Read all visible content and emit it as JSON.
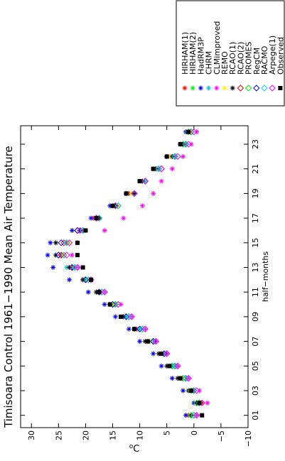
{
  "chart_data": {
    "type": "scatter",
    "title": "Timisoara Control 1961−1990 Mean Air Temperature",
    "xlabel": "half−months",
    "ylabel": "oC",
    "xlim": [
      0,
      24.5
    ],
    "ylim": [
      -10,
      32
    ],
    "xticks": [
      "01",
      "03",
      "05",
      "07",
      "09",
      "11",
      "13",
      "15",
      "17",
      "19",
      "21",
      "23"
    ],
    "yticks": [
      "−10",
      "−5",
      "0",
      "5",
      "10",
      "15",
      "20",
      "25",
      "30"
    ],
    "grid": false,
    "legend_position": "top-right",
    "x": [
      1,
      2,
      3,
      4,
      5,
      6,
      7,
      8,
      9,
      10,
      11,
      12,
      13,
      14,
      15,
      16,
      17,
      18,
      19,
      20,
      21,
      22,
      23,
      24
    ],
    "series": [
      {
        "name": "HIRHAM(1)",
        "marker": "star",
        "color": "#ff0000",
        "values": [
          1.0,
          -1.5,
          0.5,
          2.5,
          4.5,
          6.0,
          8.5,
          10.5,
          13.0,
          15.0,
          18.0,
          20.5,
          22.5,
          24.5,
          23.5,
          21.0,
          18.5,
          15.0,
          12.0,
          10.0,
          7.0,
          4.0,
          2.0,
          1.0
        ]
      },
      {
        "name": "HIRHAM(2)",
        "marker": "star",
        "color": "#00ee00",
        "values": [
          0.5,
          -1.0,
          0.0,
          2.0,
          4.0,
          5.5,
          8.0,
          10.0,
          12.5,
          14.5,
          17.5,
          20.0,
          22.0,
          24.0,
          23.0,
          20.5,
          18.0,
          14.5,
          11.5,
          9.5,
          6.5,
          3.5,
          1.5,
          0.5
        ]
      },
      {
        "name": "HadRM3P",
        "marker": "star",
        "color": "#0000ff",
        "values": [
          1.5,
          0.0,
          2.0,
          4.0,
          6.0,
          7.5,
          10.0,
          12.0,
          14.5,
          16.5,
          19.5,
          23.0,
          26.0,
          27.0,
          26.5,
          22.5,
          19.0,
          15.5,
          12.5,
          10.0,
          7.5,
          5.0,
          2.5,
          1.5
        ]
      },
      {
        "name": "CHRM",
        "marker": "star",
        "color": "#00cccc",
        "values": [
          0.5,
          -1.0,
          0.0,
          1.5,
          3.5,
          5.5,
          7.5,
          10.0,
          12.5,
          14.5,
          18.0,
          20.5,
          23.5,
          24.0,
          23.5,
          20.5,
          17.5,
          14.0,
          11.0,
          9.0,
          6.5,
          3.5,
          1.5,
          0.5
        ]
      },
      {
        "name": "CLMimproved",
        "marker": "star",
        "color": "#ff00ff",
        "values": [
          -0.5,
          -2.5,
          -1.0,
          1.0,
          3.0,
          5.0,
          7.0,
          9.0,
          11.5,
          13.5,
          16.5,
          19.0,
          21.5,
          22.5,
          21.5,
          16.5,
          13.0,
          9.5,
          7.5,
          6.0,
          4.0,
          2.0,
          0.5,
          -0.5
        ]
      },
      {
        "name": "REMO",
        "marker": "star",
        "color": "#ffee00",
        "values": [
          0.5,
          -1.0,
          0.5,
          2.0,
          4.5,
          6.0,
          8.0,
          11.0,
          13.0,
          15.0,
          18.0,
          20.5,
          23.0,
          24.0,
          23.0,
          20.0,
          17.5,
          14.0,
          11.5,
          10.0,
          7.5,
          4.5,
          2.0,
          0.5
        ]
      },
      {
        "name": "RCAO(1)",
        "marker": "star",
        "color": "#000000",
        "values": [
          0.5,
          -0.5,
          1.0,
          3.0,
          5.0,
          6.5,
          9.0,
          11.0,
          13.0,
          15.5,
          18.0,
          20.5,
          23.0,
          25.5,
          25.5,
          21.0,
          17.5,
          14.5,
          11.0,
          9.5,
          7.0,
          4.0,
          2.0,
          1.0
        ]
      },
      {
        "name": "RCAO(2)",
        "marker": "diamond",
        "color": "#ff0000",
        "values": [
          0.0,
          -1.0,
          0.0,
          1.5,
          3.5,
          5.0,
          7.5,
          9.5,
          12.0,
          14.5,
          17.0,
          20.0,
          22.5,
          24.5,
          24.0,
          21.5,
          18.0,
          14.5,
          11.0,
          9.0,
          6.5,
          3.5,
          1.5,
          0.5
        ]
      },
      {
        "name": "PROMES",
        "marker": "diamond",
        "color": "#00ee00",
        "values": [
          0.5,
          -0.5,
          0.5,
          2.0,
          4.0,
          5.5,
          7.5,
          9.5,
          12.0,
          14.5,
          17.0,
          19.5,
          22.0,
          24.0,
          23.5,
          20.5,
          17.5,
          14.0,
          11.0,
          9.0,
          6.5,
          3.5,
          2.0,
          1.0
        ]
      },
      {
        "name": "RegCM",
        "marker": "diamond",
        "color": "#0000ff",
        "values": [
          0.0,
          -1.0,
          0.0,
          1.5,
          3.5,
          5.5,
          7.5,
          10.0,
          12.5,
          15.0,
          17.5,
          20.0,
          22.5,
          25.0,
          24.5,
          21.5,
          18.0,
          14.5,
          11.0,
          9.0,
          6.0,
          3.5,
          1.5,
          0.5
        ]
      },
      {
        "name": "RACMO",
        "marker": "diamond",
        "color": "#00cccc",
        "values": [
          0.0,
          -1.0,
          0.0,
          1.5,
          3.5,
          5.0,
          7.0,
          9.5,
          12.0,
          14.0,
          17.0,
          19.5,
          22.0,
          24.0,
          23.5,
          20.5,
          17.5,
          14.0,
          11.0,
          9.0,
          6.5,
          3.5,
          1.5,
          0.5
        ]
      },
      {
        "name": "Arpege(1)",
        "marker": "diamond",
        "color": "#ff00ff",
        "values": [
          -0.5,
          -1.5,
          -0.5,
          1.0,
          3.0,
          5.0,
          7.0,
          9.0,
          11.5,
          14.0,
          16.5,
          19.0,
          21.5,
          23.5,
          23.0,
          21.0,
          18.0,
          14.5,
          11.0,
          9.0,
          6.0,
          3.0,
          1.0,
          0.0
        ]
      },
      {
        "name": "Observed",
        "marker": "square",
        "color": "#000000",
        "values": [
          -1.5,
          -1.0,
          0.5,
          2.5,
          4.5,
          6.0,
          8.5,
          11.0,
          13.5,
          15.5,
          17.5,
          19.0,
          20.5,
          21.5,
          21.5,
          20.0,
          18.0,
          15.0,
          12.5,
          10.0,
          7.5,
          5.0,
          2.5,
          1.0
        ]
      }
    ]
  }
}
